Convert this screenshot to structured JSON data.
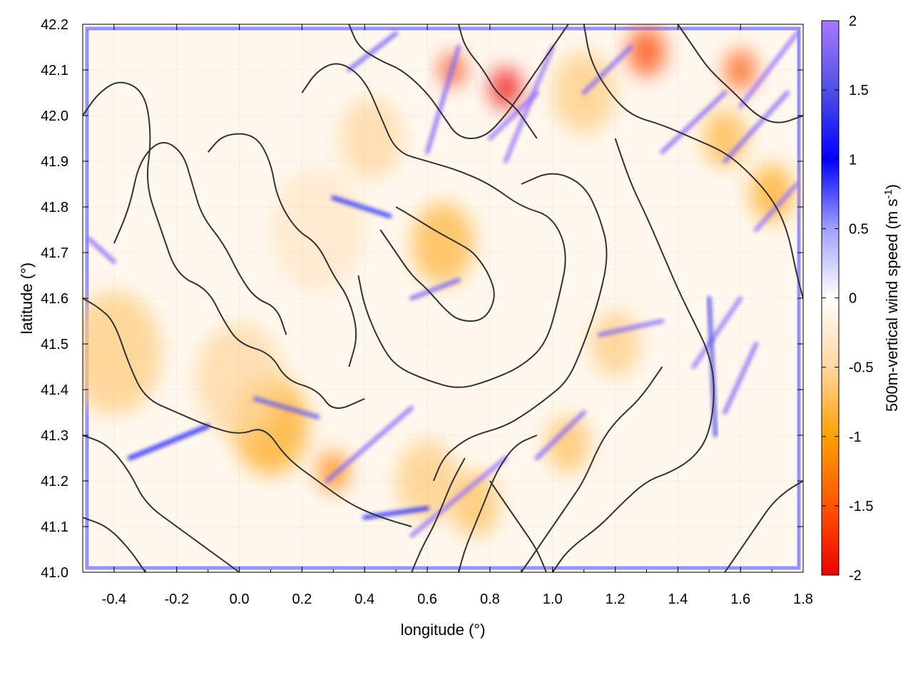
{
  "chart_data": {
    "type": "heatmap",
    "title": "",
    "xlabel": "longitude (°)",
    "ylabel": "latitude (°)",
    "xlim": [
      -0.5,
      1.8
    ],
    "ylim": [
      41.0,
      42.2
    ],
    "x_ticks": [
      -0.4,
      -0.2,
      0.0,
      0.2,
      0.4,
      0.6,
      0.8,
      1.0,
      1.2,
      1.4,
      1.6,
      1.8
    ],
    "x_tick_labels": [
      "-0.4",
      "-0.2",
      "0.0",
      "0.2",
      "0.4",
      "0.6",
      "0.8",
      "1.0",
      "1.2",
      "1.4",
      "1.6",
      "1.8"
    ],
    "y_ticks": [
      41.0,
      41.1,
      41.2,
      41.3,
      41.4,
      41.5,
      41.6,
      41.7,
      41.8,
      41.9,
      42.0,
      42.1,
      42.2
    ],
    "y_tick_labels": [
      "41.0",
      "41.1",
      "41.2",
      "41.3",
      "41.4",
      "41.5",
      "41.6",
      "41.7",
      "41.8",
      "41.9",
      "42.0",
      "42.1",
      "42.2"
    ],
    "grid": true,
    "colorbar": {
      "label": "500m-vertical wind speed (m s",
      "label_sup": "-1",
      "label_end": ")",
      "range": [
        -2,
        2
      ],
      "ticks": [
        2,
        1.5,
        1,
        0.5,
        0,
        -0.5,
        -1,
        -1.5,
        -2
      ],
      "tick_labels": [
        "2",
        "1.5",
        "1",
        "0.5",
        "0",
        "-0.5",
        "-1",
        "-1.5",
        "-2"
      ],
      "stops": [
        {
          "value": -2,
          "color": "#ee0000"
        },
        {
          "value": -1.5,
          "color": "#ff5500"
        },
        {
          "value": -1,
          "color": "#ffa000"
        },
        {
          "value": -0.5,
          "color": "#ffd7a0"
        },
        {
          "value": 0,
          "color": "#ffffff"
        },
        {
          "value": 0.5,
          "color": "#a0a0ff"
        },
        {
          "value": 1,
          "color": "#0000ff"
        },
        {
          "value": 1.5,
          "color": "#5050e6"
        },
        {
          "value": 2,
          "color": "#aa77ff"
        }
      ]
    },
    "field_features": [
      {
        "type": "blob",
        "lon": 0.1,
        "lat": 41.32,
        "value": -0.9,
        "r": 0.12
      },
      {
        "type": "blob",
        "lon": -0.4,
        "lat": 41.48,
        "value": -0.6,
        "r": 0.15
      },
      {
        "type": "blob",
        "lon": 0.0,
        "lat": 41.42,
        "value": -0.5,
        "r": 0.14
      },
      {
        "type": "blob",
        "lon": 0.65,
        "lat": 41.72,
        "value": -0.8,
        "r": 0.1
      },
      {
        "type": "blob",
        "lon": 0.6,
        "lat": 41.2,
        "value": -0.6,
        "r": 0.1
      },
      {
        "type": "blob",
        "lon": 0.75,
        "lat": 41.15,
        "value": -0.7,
        "r": 0.08
      },
      {
        "type": "blob",
        "lon": 0.42,
        "lat": 41.95,
        "value": -0.5,
        "r": 0.1
      },
      {
        "type": "blob",
        "lon": 0.85,
        "lat": 42.06,
        "value": -2.0,
        "r": 0.05
      },
      {
        "type": "blob",
        "lon": 0.68,
        "lat": 42.1,
        "value": -1.7,
        "r": 0.04
      },
      {
        "type": "blob",
        "lon": 1.3,
        "lat": 42.14,
        "value": -1.6,
        "r": 0.06
      },
      {
        "type": "blob",
        "lon": 1.6,
        "lat": 42.1,
        "value": -1.5,
        "r": 0.05
      },
      {
        "type": "blob",
        "lon": 1.7,
        "lat": 41.83,
        "value": -0.9,
        "r": 0.07
      },
      {
        "type": "blob",
        "lon": 1.55,
        "lat": 41.95,
        "value": -0.8,
        "r": 0.07
      },
      {
        "type": "blob",
        "lon": 1.2,
        "lat": 41.5,
        "value": -0.6,
        "r": 0.08
      },
      {
        "type": "blob",
        "lon": 1.05,
        "lat": 41.28,
        "value": -0.7,
        "r": 0.07
      },
      {
        "type": "blob",
        "lon": 0.3,
        "lat": 41.22,
        "value": -1.2,
        "r": 0.05
      },
      {
        "type": "blob",
        "lon": 1.1,
        "lat": 42.05,
        "value": -0.6,
        "r": 0.1
      },
      {
        "type": "blob",
        "lon": 0.25,
        "lat": 41.75,
        "value": -0.3,
        "r": 0.15
      },
      {
        "type": "streak",
        "lon1": 0.28,
        "lat1": 41.2,
        "lon2": 0.55,
        "lat2": 41.36,
        "value": 1.8
      },
      {
        "type": "streak",
        "lon1": 0.55,
        "lat1": 41.08,
        "lon2": 0.85,
        "lat2": 41.25,
        "value": 1.9
      },
      {
        "type": "streak",
        "lon1": 0.95,
        "lat1": 41.25,
        "lon2": 1.1,
        "lat2": 41.35,
        "value": 1.8
      },
      {
        "type": "streak",
        "lon1": 0.05,
        "lat1": 41.38,
        "lon2": 0.25,
        "lat2": 41.34,
        "value": 1.6
      },
      {
        "type": "streak",
        "lon1": 1.15,
        "lat1": 41.52,
        "lon2": 1.35,
        "lat2": 41.55,
        "value": 1.8
      },
      {
        "type": "streak",
        "lon1": 1.45,
        "lat1": 41.45,
        "lon2": 1.6,
        "lat2": 41.6,
        "value": 1.9
      },
      {
        "type": "streak",
        "lon1": 1.55,
        "lat1": 41.35,
        "lon2": 1.65,
        "lat2": 41.5,
        "value": 1.8
      },
      {
        "type": "streak",
        "lon1": 1.65,
        "lat1": 41.75,
        "lon2": 1.78,
        "lat2": 41.85,
        "value": 1.9
      },
      {
        "type": "streak",
        "lon1": 1.55,
        "lat1": 41.9,
        "lon2": 1.75,
        "lat2": 42.05,
        "value": 1.8
      },
      {
        "type": "streak",
        "lon1": 1.35,
        "lat1": 41.92,
        "lon2": 1.55,
        "lat2": 42.05,
        "value": 1.8
      },
      {
        "type": "streak",
        "lon1": 1.6,
        "lat1": 42.02,
        "lon2": 1.78,
        "lat2": 42.18,
        "value": 1.9
      },
      {
        "type": "streak",
        "lon1": 0.85,
        "lat1": 41.9,
        "lon2": 1.0,
        "lat2": 42.15,
        "value": 1.9
      },
      {
        "type": "streak",
        "lon1": 0.6,
        "lat1": 41.92,
        "lon2": 0.7,
        "lat2": 42.15,
        "value": 1.8
      },
      {
        "type": "streak",
        "lon1": 0.35,
        "lat1": 42.1,
        "lon2": 0.5,
        "lat2": 42.18,
        "value": 1.7
      },
      {
        "type": "streak",
        "lon1": 1.1,
        "lat1": 42.05,
        "lon2": 1.25,
        "lat2": 42.15,
        "value": 1.8
      },
      {
        "type": "streak",
        "lon1": -0.48,
        "lat1": 41.73,
        "lon2": -0.4,
        "lat2": 41.68,
        "value": 1.8
      },
      {
        "type": "streak",
        "lon1": 0.8,
        "lat1": 41.95,
        "lon2": 0.95,
        "lat2": 42.05,
        "value": 1.9
      },
      {
        "type": "streak",
        "lon1": 0.55,
        "lat1": 41.6,
        "lon2": 0.7,
        "lat2": 41.64,
        "value": 1.7
      },
      {
        "type": "streak",
        "lon1": 0.3,
        "lat1": 41.82,
        "lon2": 0.48,
        "lat2": 41.78,
        "value": 1.2
      },
      {
        "type": "streak",
        "lon1": -0.35,
        "lat1": 41.25,
        "lon2": -0.1,
        "lat2": 41.32,
        "value": 1.1
      },
      {
        "type": "streak",
        "lon1": 0.4,
        "lat1": 41.12,
        "lon2": 0.6,
        "lat2": 41.14,
        "value": 1.2
      },
      {
        "type": "streak",
        "lon1": 1.5,
        "lat1": 41.6,
        "lon2": 1.52,
        "lat2": 41.3,
        "value": 1.5
      }
    ],
    "contours": [
      [
        [
          -0.5,
          42.0
        ],
        [
          -0.45,
          42.05
        ],
        [
          -0.38,
          42.08
        ],
        [
          -0.3,
          42.05
        ],
        [
          -0.28,
          41.95
        ],
        [
          -0.3,
          41.85
        ],
        [
          -0.25,
          41.75
        ],
        [
          -0.2,
          41.65
        ],
        [
          -0.1,
          41.62
        ],
        [
          -0.05,
          41.55
        ],
        [
          0.0,
          41.5
        ],
        [
          0.1,
          41.48
        ],
        [
          0.15,
          41.42
        ],
        [
          0.25,
          41.4
        ],
        [
          0.3,
          41.35
        ],
        [
          0.4,
          41.38
        ]
      ],
      [
        [
          -0.5,
          41.6
        ],
        [
          -0.45,
          41.58
        ],
        [
          -0.4,
          41.55
        ],
        [
          -0.35,
          41.45
        ],
        [
          -0.3,
          41.38
        ],
        [
          -0.2,
          41.35
        ],
        [
          -0.1,
          41.32
        ],
        [
          0.0,
          41.3
        ],
        [
          0.08,
          41.32
        ],
        [
          0.15,
          41.25
        ],
        [
          0.25,
          41.2
        ],
        [
          0.35,
          41.15
        ],
        [
          0.45,
          41.12
        ],
        [
          0.55,
          41.1
        ]
      ],
      [
        [
          -0.5,
          41.3
        ],
        [
          -0.42,
          41.28
        ],
        [
          -0.35,
          41.22
        ],
        [
          -0.3,
          41.15
        ],
        [
          -0.2,
          41.1
        ],
        [
          -0.1,
          41.05
        ],
        [
          0.0,
          41.0
        ]
      ],
      [
        [
          -0.5,
          41.12
        ],
        [
          -0.42,
          41.1
        ],
        [
          -0.35,
          41.05
        ],
        [
          -0.3,
          41.0
        ]
      ],
      [
        [
          -0.4,
          41.72
        ],
        [
          -0.35,
          41.8
        ],
        [
          -0.32,
          41.9
        ],
        [
          -0.25,
          41.95
        ],
        [
          -0.18,
          41.92
        ],
        [
          -0.15,
          41.85
        ],
        [
          -0.12,
          41.78
        ],
        [
          -0.05,
          41.72
        ],
        [
          0.0,
          41.65
        ],
        [
          0.05,
          41.6
        ],
        [
          0.12,
          41.58
        ],
        [
          0.15,
          41.52
        ]
      ],
      [
        [
          -0.1,
          41.92
        ],
        [
          -0.05,
          41.96
        ],
        [
          0.05,
          41.96
        ],
        [
          0.1,
          41.9
        ],
        [
          0.12,
          41.82
        ],
        [
          0.18,
          41.75
        ],
        [
          0.25,
          41.72
        ],
        [
          0.3,
          41.65
        ],
        [
          0.35,
          41.6
        ],
        [
          0.38,
          41.52
        ],
        [
          0.35,
          41.45
        ]
      ],
      [
        [
          0.2,
          42.05
        ],
        [
          0.25,
          42.1
        ],
        [
          0.32,
          42.12
        ],
        [
          0.4,
          42.08
        ],
        [
          0.45,
          42.0
        ],
        [
          0.5,
          41.92
        ],
        [
          0.6,
          41.9
        ],
        [
          0.7,
          41.88
        ],
        [
          0.8,
          41.85
        ],
        [
          0.9,
          41.8
        ],
        [
          1.0,
          41.78
        ],
        [
          1.05,
          41.7
        ],
        [
          1.02,
          41.6
        ],
        [
          0.98,
          41.5
        ],
        [
          0.9,
          41.45
        ],
        [
          0.8,
          41.42
        ],
        [
          0.7,
          41.4
        ],
        [
          0.6,
          41.42
        ],
        [
          0.5,
          41.45
        ],
        [
          0.45,
          41.5
        ],
        [
          0.4,
          41.58
        ],
        [
          0.38,
          41.65
        ]
      ],
      [
        [
          0.45,
          41.75
        ],
        [
          0.5,
          41.7
        ],
        [
          0.55,
          41.65
        ],
        [
          0.6,
          41.62
        ],
        [
          0.65,
          41.58
        ],
        [
          0.7,
          41.55
        ],
        [
          0.78,
          41.55
        ],
        [
          0.82,
          41.6
        ],
        [
          0.8,
          41.65
        ],
        [
          0.75,
          41.7
        ],
        [
          0.7,
          41.72
        ],
        [
          0.62,
          41.75
        ],
        [
          0.55,
          41.78
        ],
        [
          0.5,
          41.8
        ]
      ],
      [
        [
          0.9,
          41.85
        ],
        [
          1.0,
          41.88
        ],
        [
          1.1,
          41.85
        ],
        [
          1.15,
          41.78
        ],
        [
          1.18,
          41.7
        ],
        [
          1.15,
          41.6
        ],
        [
          1.1,
          41.5
        ],
        [
          1.05,
          41.42
        ],
        [
          0.98,
          41.38
        ],
        [
          0.92,
          41.35
        ],
        [
          0.85,
          41.32
        ],
        [
          0.75,
          41.3
        ],
        [
          0.7,
          41.28
        ],
        [
          0.65,
          41.25
        ],
        [
          0.62,
          41.2
        ]
      ],
      [
        [
          1.2,
          41.95
        ],
        [
          1.25,
          41.85
        ],
        [
          1.3,
          41.78
        ],
        [
          1.35,
          41.7
        ],
        [
          1.4,
          41.62
        ],
        [
          1.45,
          41.55
        ],
        [
          1.5,
          41.48
        ],
        [
          1.52,
          41.4
        ],
        [
          1.5,
          41.3
        ],
        [
          1.45,
          41.25
        ],
        [
          1.38,
          41.22
        ],
        [
          1.3,
          41.2
        ],
        [
          1.22,
          41.15
        ],
        [
          1.15,
          41.1
        ],
        [
          1.05,
          41.05
        ],
        [
          1.0,
          41.0
        ]
      ],
      [
        [
          1.55,
          41.0
        ],
        [
          1.6,
          41.05
        ],
        [
          1.65,
          41.1
        ],
        [
          1.7,
          41.15
        ],
        [
          1.75,
          41.18
        ],
        [
          1.8,
          41.2
        ]
      ],
      [
        [
          0.9,
          41.0
        ],
        [
          0.95,
          41.05
        ],
        [
          1.0,
          41.1
        ],
        [
          1.05,
          41.15
        ],
        [
          1.1,
          41.2
        ],
        [
          1.15,
          41.28
        ],
        [
          1.2,
          41.33
        ],
        [
          1.28,
          41.38
        ],
        [
          1.35,
          41.45
        ]
      ],
      [
        [
          0.35,
          42.2
        ],
        [
          0.38,
          42.15
        ],
        [
          0.45,
          42.12
        ],
        [
          0.52,
          42.1
        ],
        [
          0.6,
          42.05
        ],
        [
          0.65,
          42.0
        ],
        [
          0.7,
          41.95
        ],
        [
          0.78,
          41.95
        ],
        [
          0.85,
          42.0
        ],
        [
          0.9,
          42.05
        ],
        [
          0.95,
          42.1
        ],
        [
          1.0,
          42.15
        ],
        [
          1.05,
          42.2
        ]
      ],
      [
        [
          0.7,
          42.2
        ],
        [
          0.72,
          42.15
        ],
        [
          0.78,
          42.1
        ],
        [
          0.82,
          42.05
        ],
        [
          0.88,
          42.02
        ],
        [
          0.92,
          41.98
        ],
        [
          0.95,
          41.95
        ]
      ],
      [
        [
          1.1,
          42.2
        ],
        [
          1.12,
          42.12
        ],
        [
          1.18,
          42.05
        ],
        [
          1.25,
          42.0
        ],
        [
          1.35,
          41.98
        ],
        [
          1.45,
          41.95
        ],
        [
          1.55,
          41.92
        ],
        [
          1.62,
          41.88
        ],
        [
          1.7,
          41.82
        ],
        [
          1.75,
          41.75
        ],
        [
          1.78,
          41.65
        ],
        [
          1.8,
          41.6
        ]
      ],
      [
        [
          1.4,
          42.2
        ],
        [
          1.45,
          42.15
        ],
        [
          1.5,
          42.1
        ],
        [
          1.58,
          42.05
        ],
        [
          1.65,
          42.0
        ],
        [
          1.72,
          41.98
        ],
        [
          1.8,
          42.0
        ]
      ],
      [
        [
          0.8,
          41.2
        ],
        [
          0.85,
          41.15
        ],
        [
          0.9,
          41.1
        ],
        [
          0.95,
          41.05
        ],
        [
          0.98,
          41.0
        ]
      ],
      [
        [
          0.7,
          41.0
        ],
        [
          0.72,
          41.05
        ],
        [
          0.75,
          41.1
        ],
        [
          0.78,
          41.15
        ],
        [
          0.82,
          41.22
        ],
        [
          0.88,
          41.28
        ],
        [
          0.95,
          41.3
        ]
      ],
      [
        [
          0.55,
          41.0
        ],
        [
          0.58,
          41.05
        ],
        [
          0.62,
          41.1
        ],
        [
          0.65,
          41.15
        ],
        [
          0.68,
          41.2
        ],
        [
          0.72,
          41.25
        ]
      ]
    ]
  }
}
